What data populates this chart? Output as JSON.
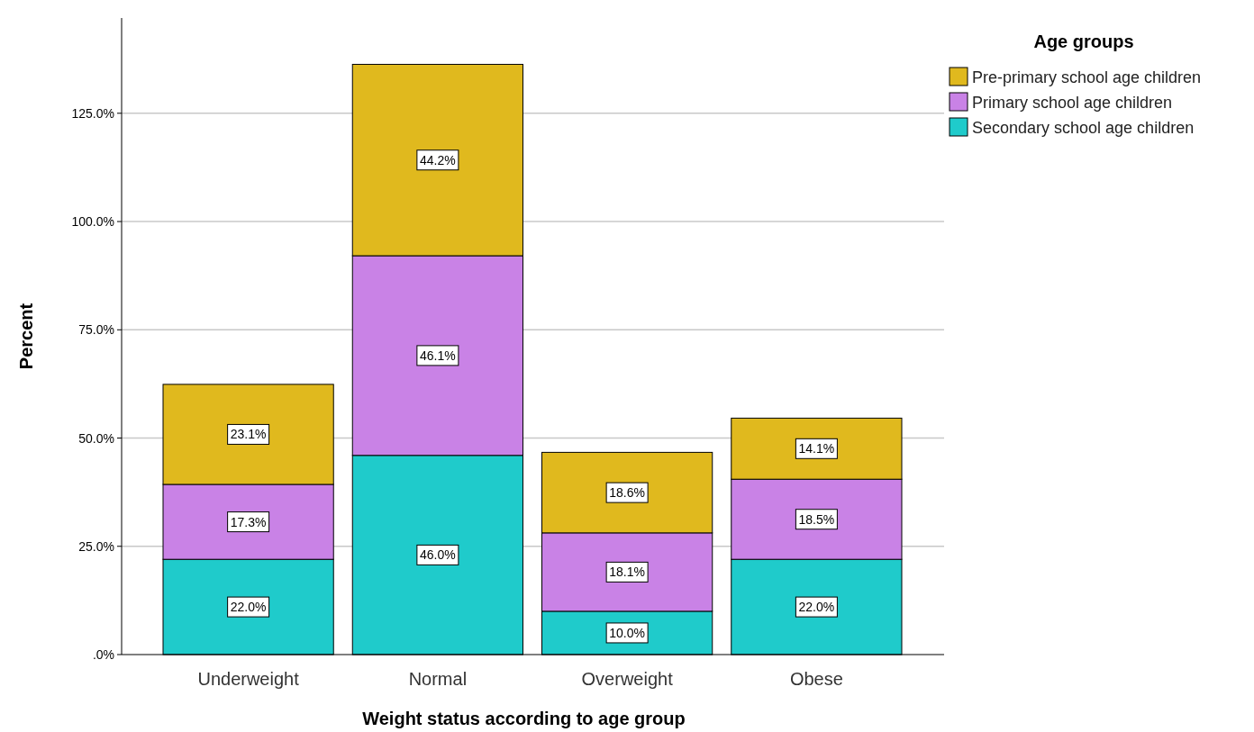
{
  "chart_data": {
    "type": "bar",
    "stacked": true,
    "xlabel": "Weight status according to age group",
    "ylabel": "Percent",
    "legend_title": "Age groups",
    "categories": [
      "Underweight",
      "Normal",
      "Overweight",
      "Obese"
    ],
    "series": [
      {
        "name": "Secondary school age children",
        "color": "#1fcbcb",
        "values": [
          22.0,
          46.0,
          10.0,
          22.0
        ],
        "value_labels": [
          "22.0%",
          "46.0%",
          "10.0%",
          "22.0%"
        ]
      },
      {
        "name": "Primary school age children",
        "color": "#c982e6",
        "values": [
          17.3,
          46.1,
          18.1,
          18.5
        ],
        "value_labels": [
          "17.3%",
          "46.1%",
          "18.1%",
          "18.5%"
        ]
      },
      {
        "name": "Pre-primary school age children",
        "color": "#e0b91e",
        "values": [
          23.1,
          44.2,
          18.6,
          14.1
        ],
        "value_labels": [
          "23.1%",
          "44.2%",
          "18.6%",
          "14.1%"
        ]
      }
    ],
    "ylim": [
      0,
      147
    ],
    "yticks": [
      {
        "value": 0,
        "label": ".0%"
      },
      {
        "value": 25,
        "label": "25.0%"
      },
      {
        "value": 50,
        "label": "50.0%"
      },
      {
        "value": 75,
        "label": "75.0%"
      },
      {
        "value": 100,
        "label": "100.0%"
      },
      {
        "value": 125,
        "label": "125.0%"
      }
    ],
    "grid": "y",
    "legend": "top right"
  }
}
